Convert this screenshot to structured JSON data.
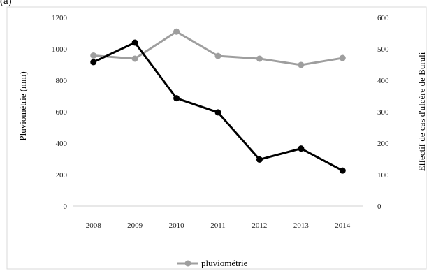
{
  "figure": {
    "corner_label": "(a)"
  },
  "chart_data": {
    "type": "line",
    "categories": [
      "2008",
      "2009",
      "2010",
      "2011",
      "2012",
      "2013",
      "2014"
    ],
    "y_left": {
      "label": "Pluviométrie (mm)",
      "ticks": [
        "0",
        "200",
        "400",
        "600",
        "800",
        "1000",
        "1200"
      ],
      "lim": [
        0,
        1200
      ]
    },
    "y_right": {
      "label": "Effectif de cas d'ulcère de Buruli",
      "ticks": [
        "0",
        "100",
        "200",
        "300",
        "400",
        "500",
        "600"
      ],
      "lim": [
        0,
        600
      ]
    },
    "series": [
      {
        "name": "pluviométrie",
        "axis": "left",
        "color": "#9e9e9e",
        "values": [
          958,
          938,
          1110,
          955,
          938,
          898,
          942
        ]
      },
      {
        "axis": "right",
        "color": "#000000",
        "values": [
          458,
          520,
          343,
          298,
          148,
          183,
          113
        ]
      }
    ],
    "legend": {
      "position": "bottom",
      "entries": [
        "pluviométrie"
      ]
    },
    "grid": false
  }
}
